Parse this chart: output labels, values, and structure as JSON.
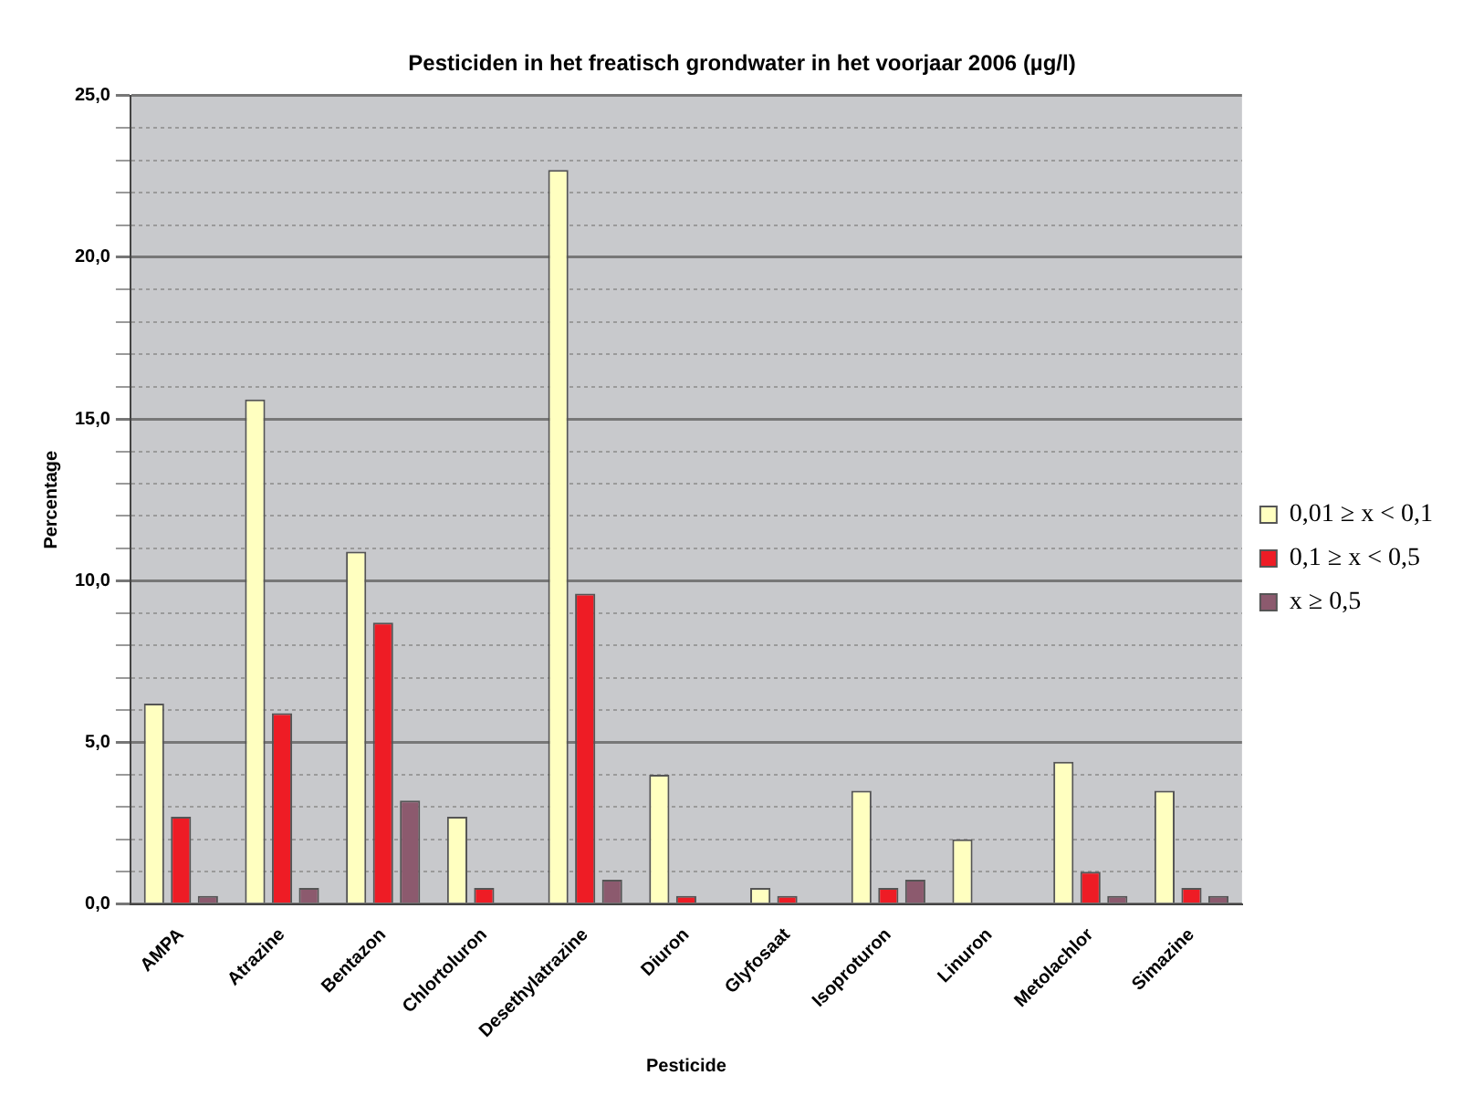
{
  "chart_data": {
    "type": "bar",
    "title": "Pesticiden in het freatisch grondwater in het voorjaar 2006 (µg/l)",
    "xlabel": "Pesticide",
    "ylabel": "Percentage",
    "categories": [
      "AMPA",
      "Atrazine",
      "Bentazon",
      "Chlortoluron",
      "Desethylatrazine",
      "Diuron",
      "Glyfosaat",
      "Isoproturon",
      "Linuron",
      "Metolachlor",
      "Simazine"
    ],
    "series": [
      {
        "name": "0,01 ≥ x < 0,1",
        "color": "#ffffc0",
        "values": [
          6.2,
          15.6,
          10.9,
          2.7,
          22.7,
          4.0,
          0.5,
          3.5,
          2.0,
          4.4,
          3.5
        ]
      },
      {
        "name": "0,1 ≥ x < 0,5",
        "color": "#ee1c25",
        "values": [
          2.7,
          5.9,
          8.7,
          0.5,
          9.6,
          0.25,
          0.25,
          0.5,
          null,
          1.0,
          0.5
        ]
      },
      {
        "name": "x ≥ 0,5",
        "color": "#8c5a6e",
        "values": [
          0.25,
          0.5,
          3.2,
          null,
          0.75,
          null,
          null,
          0.75,
          null,
          0.25,
          0.25
        ]
      }
    ],
    "ylim": [
      0,
      25
    ],
    "yticks": [
      "0,0",
      {
        "value": 1,
        "label": null
      },
      {
        "value": 2,
        "label": null
      },
      {
        "value": 3,
        "label": null
      },
      {
        "value": 4,
        "label": null
      },
      {
        "value": 5,
        "label": "5,0"
      },
      {
        "value": 6,
        "label": null
      },
      {
        "value": 7,
        "label": null
      },
      {
        "value": 8,
        "label": null
      },
      {
        "value": 9,
        "label": null
      },
      {
        "value": 10,
        "label": "10,0"
      },
      {
        "value": 11,
        "label": null
      },
      {
        "value": 12,
        "label": null
      },
      {
        "value": 13,
        "label": null
      },
      {
        "value": 14,
        "label": null
      },
      {
        "value": 15,
        "label": "15,0"
      },
      {
        "value": 16,
        "label": null
      },
      {
        "value": 17,
        "label": null
      },
      {
        "value": 18,
        "label": null
      },
      {
        "value": 19,
        "label": null
      },
      {
        "value": 20,
        "label": "20,0"
      },
      {
        "value": 21,
        "label": null
      },
      {
        "value": 22,
        "label": null
      },
      {
        "value": 23,
        "label": null
      },
      {
        "value": 24,
        "label": null
      },
      {
        "value": 25,
        "label": "25,0"
      }
    ],
    "grid": "y",
    "legend": "right"
  }
}
